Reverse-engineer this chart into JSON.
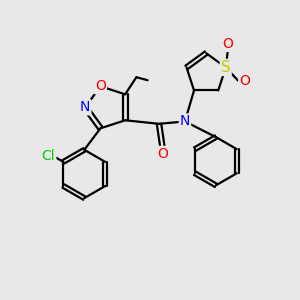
{
  "bg_color": "#e8e8e8",
  "atom_colors": {
    "N": "#0000ff",
    "O": "#ff0000",
    "S": "#cccc00",
    "Cl": "#00cc00",
    "C": "#000000"
  },
  "bond_color": "#000000",
  "bond_width": 1.6,
  "font_size_atom": 10
}
